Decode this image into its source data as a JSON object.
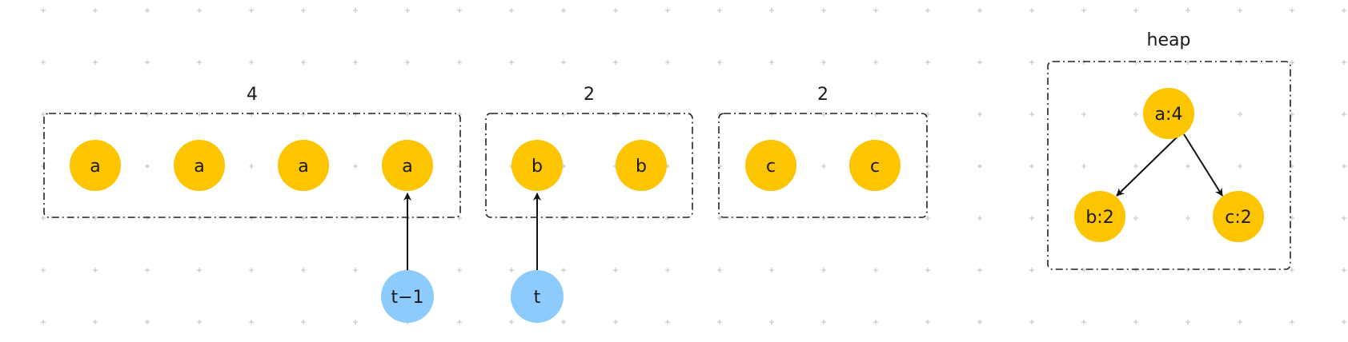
{
  "colors": {
    "element_node": "#FDC400",
    "pointer_node": "#8CCBFB",
    "edge": "#111111",
    "group_border": "#222222",
    "grid_dot": "#c8c8c8",
    "background": "#ffffff"
  },
  "groups": [
    {
      "count_label": "4",
      "items": [
        "a",
        "a",
        "a",
        "a"
      ]
    },
    {
      "count_label": "2",
      "items": [
        "b",
        "b"
      ]
    },
    {
      "count_label": "2",
      "items": [
        "c",
        "c"
      ]
    }
  ],
  "pointers": [
    {
      "label": "t−1",
      "points_to": "a"
    },
    {
      "label": "t",
      "points_to": "b"
    }
  ],
  "heap": {
    "title": "heap",
    "root": "a:4",
    "left_child": "b:2",
    "right_child": "c:2"
  }
}
